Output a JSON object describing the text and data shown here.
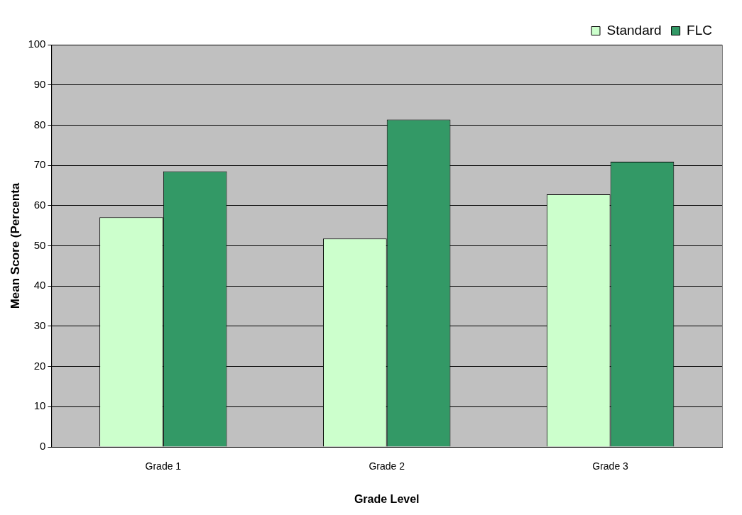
{
  "chart_data": {
    "type": "bar",
    "xlabel": "Grade Level",
    "ylabel": "Mean Score (Percenta",
    "categories": [
      "Grade 1",
      "Grade 2",
      "Grade 3"
    ],
    "series": [
      {
        "name": "Standard",
        "color": "#ccffcc",
        "values": [
          57.1,
          51.8,
          62.8
        ]
      },
      {
        "name": "FLC",
        "color": "#339966",
        "values": [
          68.5,
          81.4,
          70.9
        ]
      }
    ],
    "ylim": [
      0,
      100
    ],
    "yticks": [
      0,
      10,
      20,
      30,
      40,
      50,
      60,
      70,
      80,
      90,
      100
    ],
    "grid": "y",
    "legend": "top right"
  }
}
